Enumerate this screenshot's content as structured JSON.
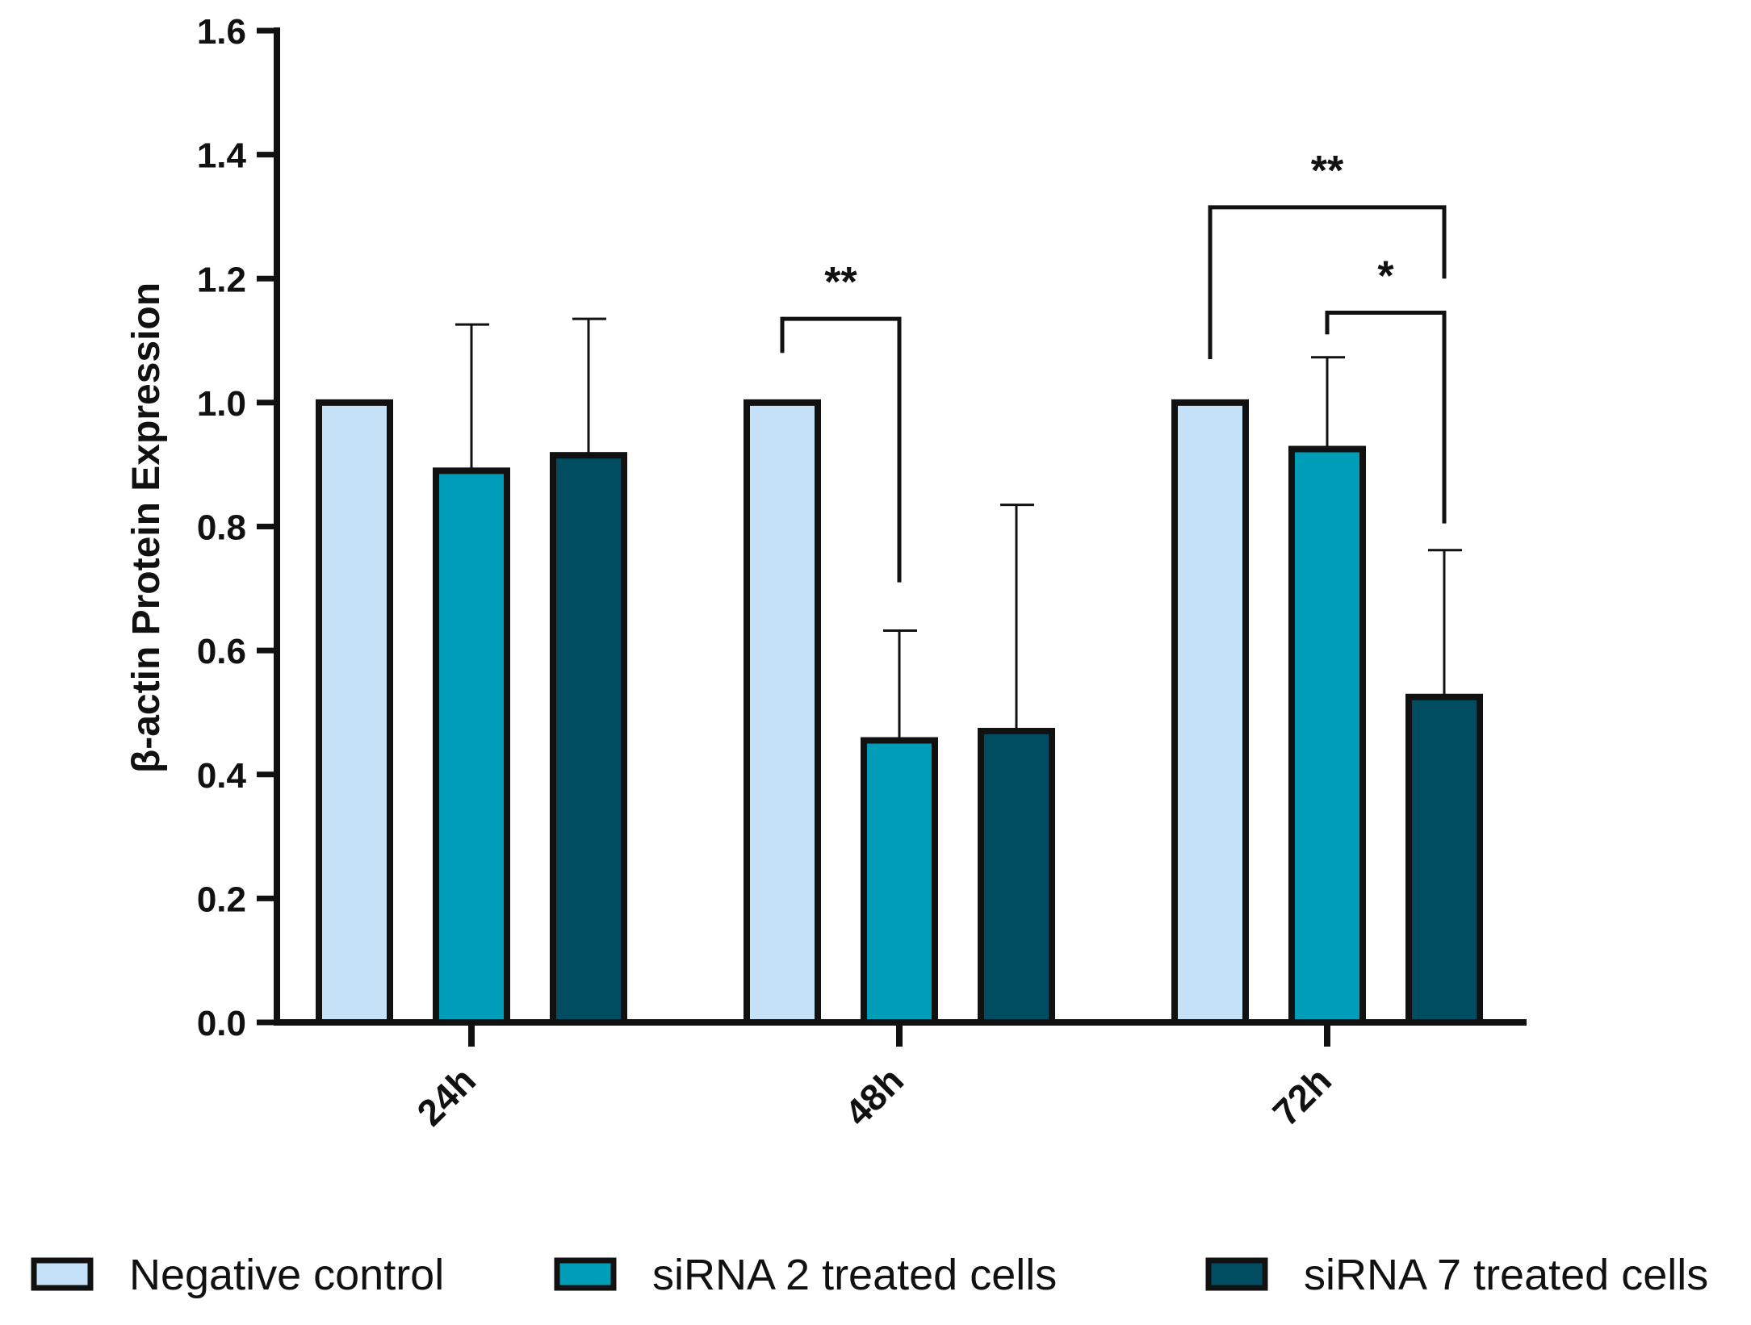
{
  "chart_data": {
    "type": "bar",
    "title": "",
    "xlabel": "",
    "ylabel": "β-actin Protein Expression",
    "ylim": [
      0,
      1.6
    ],
    "yticks": [
      0.0,
      0.2,
      0.4,
      0.6,
      0.8,
      1.0,
      1.2,
      1.4,
      1.6
    ],
    "ytick_labels": [
      "0.0",
      "0.2",
      "0.4",
      "0.6",
      "0.8",
      "1.0",
      "1.2",
      "1.4",
      "1.6"
    ],
    "categories": [
      "24h",
      "48h",
      "72h"
    ],
    "series": [
      {
        "name": "Negative control",
        "color": "#c5e1f8",
        "values": [
          1.0,
          1.0,
          1.0
        ],
        "errors": [
          null,
          null,
          null
        ]
      },
      {
        "name": "siRNA 2 treated cells",
        "color": "#009db8",
        "values": [
          0.89,
          0.455,
          0.925
        ],
        "errors": [
          0.236,
          0.177,
          0.148
        ]
      },
      {
        "name": "siRNA 7 treated cells",
        "color": "#004d62",
        "values": [
          0.915,
          0.47,
          0.525
        ],
        "errors": [
          0.22,
          0.365,
          0.237
        ]
      }
    ],
    "significance": [
      {
        "category": "48h",
        "from_series": 0,
        "to_series": 1,
        "label": "**",
        "bar_y": 1.135,
        "left_end": 1.08,
        "right_end": 0.71
      },
      {
        "category": "72h",
        "from_series": 0,
        "to_series": 2,
        "label": "**",
        "bar_y": 1.315,
        "left_end": 1.07,
        "right_end": 1.2
      },
      {
        "category": "72h",
        "from_series": 1,
        "to_series": 2,
        "label": "*",
        "bar_y": 1.145,
        "left_end": 1.11,
        "right_end": 0.805
      }
    ],
    "legend_position": "bottom",
    "grid": false
  }
}
